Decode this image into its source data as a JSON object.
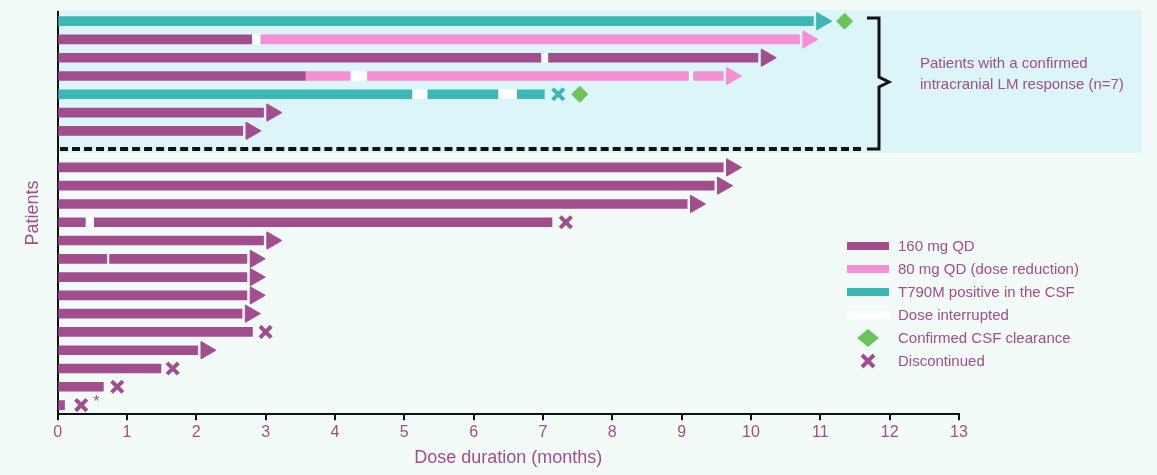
{
  "chart_data": {
    "type": "bar",
    "orientation": "horizontal",
    "categories": [
      null,
      null,
      null,
      null,
      null,
      null,
      null,
      null,
      null,
      null,
      null,
      null,
      null,
      null,
      null,
      null,
      null,
      null,
      null,
      null,
      null,
      null
    ],
    "xlabel": "Dose duration (months)",
    "ylabel": "Patients",
    "xlim": [
      0,
      13
    ],
    "xticks": [
      0,
      1,
      2,
      3,
      4,
      5,
      6,
      7,
      8,
      9,
      10,
      11,
      12,
      13
    ],
    "tick_labels": "x",
    "grid": false,
    "legend": "bottom right",
    "annotations": [
      "Patients with a confirmed intracranial LM response (n=7)",
      "*"
    ],
    "series": [
      {
        "name": "160 mg QD",
        "type": "bar",
        "color": "#a24d8e",
        "base": [
          null,
          0,
          0,
          0,
          null,
          0,
          0,
          null,
          0,
          0,
          0,
          0,
          0,
          0,
          0,
          0,
          0,
          0,
          0,
          0,
          0,
          0
        ],
        "values": [
          null,
          2.8,
          6.97,
          3.57,
          null,
          2.97,
          2.67,
          null,
          9.6,
          9.47,
          9.08,
          0.4,
          2.97,
          0.71,
          2.73,
          2.73,
          2.66,
          2.81,
          2.02,
          1.49,
          0.66,
          0.1
        ]
      },
      {
        "name": "80 mg QD (dose reduction)",
        "type": "bar",
        "color": "#f590d6",
        "base": [
          null,
          2.93,
          null,
          3.57,
          null,
          null,
          null,
          null,
          null,
          null,
          null,
          null,
          null,
          null,
          null,
          null,
          null,
          null,
          null,
          null,
          null,
          null
        ],
        "values": [
          null,
          7.77,
          null,
          0.65,
          null,
          null,
          null,
          null,
          null,
          null,
          null,
          null,
          null,
          null,
          null,
          null,
          null,
          null,
          null,
          null,
          null,
          null
        ]
      },
      {
        "name": "T790M positive in the CSF",
        "type": "bar",
        "color": "#3bb7b5",
        "base": [
          0,
          null,
          null,
          null,
          0,
          null,
          null,
          null,
          null,
          null,
          null,
          null,
          null,
          null,
          null,
          null,
          null,
          null,
          null,
          null,
          null,
          null
        ],
        "values": [
          10.9,
          null,
          null,
          null,
          5.11,
          null,
          null,
          null,
          null,
          null,
          null,
          null,
          null,
          null,
          null,
          null,
          null,
          null,
          null,
          null,
          null,
          null
        ]
      },
      {
        "name": "Dose interrupted",
        "type": "bar",
        "color": "#ffffff",
        "base": [
          null,
          2.8,
          6.97,
          4.22,
          5.11,
          null,
          null,
          null,
          null,
          null,
          null,
          0.4,
          null,
          0.71,
          null,
          null,
          null,
          null,
          null,
          null,
          null,
          null
        ],
        "values": [
          null,
          0.13,
          0.1,
          0.24,
          0.22,
          null,
          null,
          null,
          null,
          null,
          null,
          0.12,
          null,
          0.03,
          null,
          null,
          null,
          null,
          null,
          null,
          null,
          null
        ]
      },
      {
        "name": "Confirmed CSF clearance",
        "type": "scatter",
        "marker": "diamond",
        "color": "#6dc35b",
        "values": [
          11.35,
          null,
          null,
          null,
          7.53,
          null,
          null,
          null,
          null,
          null,
          null,
          null,
          null,
          null,
          null,
          null,
          null,
          null,
          null,
          null,
          null,
          null
        ]
      },
      {
        "name": "Discontinued",
        "type": "scatter",
        "marker": "cross",
        "color": "#a24d8e",
        "colors": [
          null,
          null,
          null,
          null,
          "#3bb7b5",
          null,
          null,
          null,
          null,
          null,
          null,
          null,
          null,
          null,
          null,
          null,
          null,
          null,
          null,
          null,
          null,
          null
        ],
        "values": [
          null,
          null,
          null,
          null,
          7.22,
          null,
          null,
          null,
          null,
          null,
          null,
          7.33,
          null,
          null,
          null,
          null,
          null,
          3.0,
          null,
          1.66,
          0.86,
          0.34
        ]
      },
      {
        "type": "bar",
        "color": "#a24d8e",
        "base": [
          null,
          null,
          7.07,
          null,
          null,
          null,
          null,
          null,
          null,
          null,
          null,
          0.52,
          null,
          0.74,
          null,
          null,
          null,
          null,
          null,
          null,
          null,
          null
        ],
        "values": [
          null,
          null,
          3.03,
          null,
          null,
          null,
          null,
          null,
          null,
          null,
          null,
          6.61,
          null,
          1.99,
          null,
          null,
          null,
          null,
          null,
          null,
          null,
          null
        ]
      },
      {
        "type": "bar",
        "color": "#f590d6",
        "base": [
          null,
          null,
          null,
          4.46,
          null,
          null,
          null,
          null,
          null,
          null,
          null,
          null,
          null,
          null,
          null,
          null,
          null,
          null,
          null,
          null,
          null,
          null
        ],
        "values": [
          null,
          null,
          null,
          4.64,
          null,
          null,
          null,
          null,
          null,
          null,
          null,
          null,
          null,
          null,
          null,
          null,
          null,
          null,
          null,
          null,
          null,
          null
        ]
      },
      {
        "type": "bar",
        "color": "#f590d6",
        "base": [
          null,
          null,
          null,
          9.17,
          null,
          null,
          null,
          null,
          null,
          null,
          null,
          null,
          null,
          null,
          null,
          null,
          null,
          null,
          null,
          null,
          null,
          null
        ],
        "values": [
          null,
          null,
          null,
          0.43,
          null,
          null,
          null,
          null,
          null,
          null,
          null,
          null,
          null,
          null,
          null,
          null,
          null,
          null,
          null,
          null,
          null,
          null
        ]
      },
      {
        "type": "bar",
        "color": "#3bb7b5",
        "base": [
          null,
          null,
          null,
          null,
          5.33,
          null,
          null,
          null,
          null,
          null,
          null,
          null,
          null,
          null,
          null,
          null,
          null,
          null,
          null,
          null,
          null,
          null
        ],
        "values": [
          null,
          null,
          null,
          null,
          1.02,
          null,
          null,
          null,
          null,
          null,
          null,
          null,
          null,
          null,
          null,
          null,
          null,
          null,
          null,
          null,
          null,
          null
        ]
      },
      {
        "type": "bar",
        "color": "#3bb7b5",
        "base": [
          null,
          null,
          null,
          null,
          6.63,
          null,
          null,
          null,
          null,
          null,
          null,
          null,
          null,
          null,
          null,
          null,
          null,
          null,
          null,
          null,
          null,
          null
        ],
        "values": [
          null,
          null,
          null,
          null,
          0.39,
          null,
          null,
          null,
          null,
          null,
          null,
          null,
          null,
          null,
          null,
          null,
          null,
          null,
          null,
          null,
          null,
          null
        ]
      },
      {
        "type": "bar",
        "color": "#ffffff",
        "base": [
          null,
          null,
          null,
          9.1,
          6.35,
          null,
          null,
          null,
          null,
          null,
          null,
          null,
          null,
          null,
          null,
          null,
          null,
          null,
          null,
          null,
          null,
          null
        ],
        "values": [
          null,
          null,
          null,
          0.07,
          0.28,
          null,
          null,
          null,
          null,
          null,
          null,
          null,
          null,
          null,
          null,
          null,
          null,
          null,
          null,
          null,
          null,
          null
        ]
      },
      {
        "type": "scatter",
        "marker": "triangle",
        "color": "#a24d8e",
        "colors": [
          "#3bb7b5",
          "#f590d6",
          null,
          "#f590d6",
          null,
          null,
          null,
          null,
          null,
          null,
          null,
          null,
          null,
          null,
          null,
          null,
          null,
          null,
          null,
          null,
          null,
          null
        ],
        "values": [
          11.02,
          10.82,
          10.22,
          9.72,
          null,
          3.09,
          2.79,
          null,
          9.72,
          9.59,
          9.2,
          null,
          3.09,
          2.85,
          2.85,
          2.85,
          2.78,
          null,
          2.14,
          null,
          null,
          null
        ]
      }
    ]
  }
}
